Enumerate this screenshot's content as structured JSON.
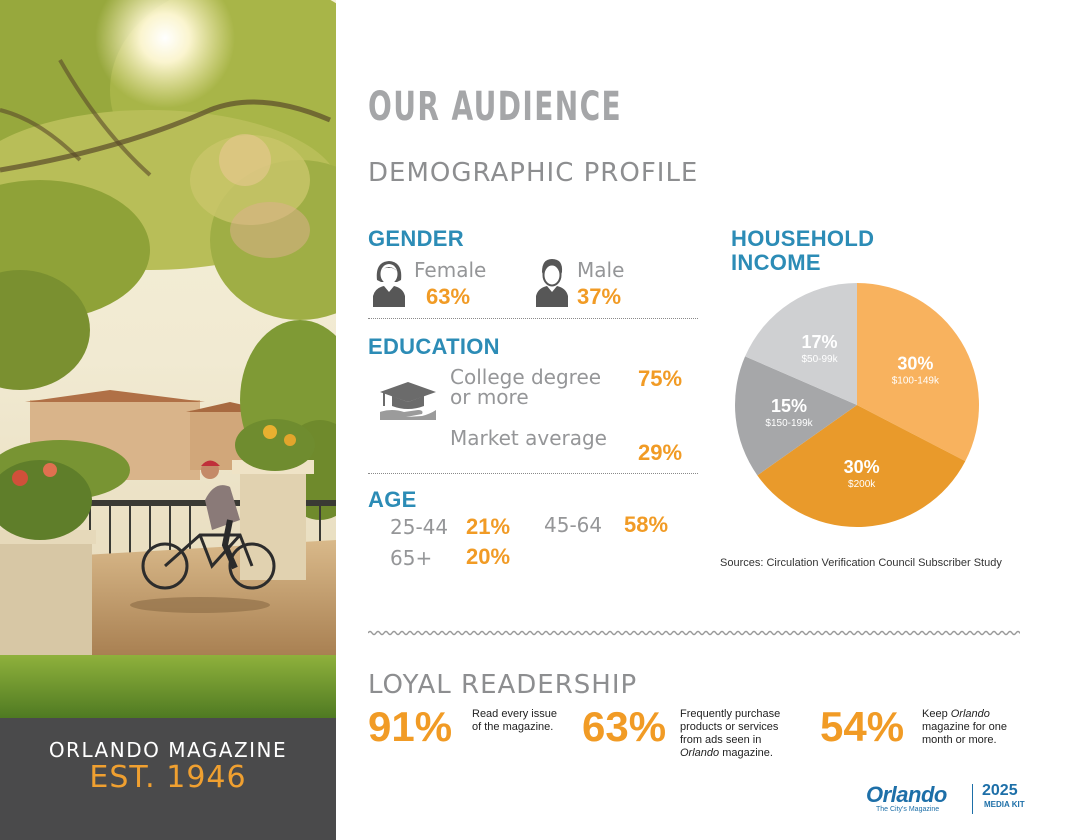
{
  "brand": {
    "name": "ORLANDO MAGAZINE",
    "established": "EST. 1946"
  },
  "page": {
    "title": "OUR AUDIENCE",
    "subtitle": "DEMOGRAPHIC PROFILE"
  },
  "gender": {
    "heading": "GENDER",
    "female": {
      "label": "Female",
      "value": "63%",
      "icon": "female-person-icon"
    },
    "male": {
      "label": "Male",
      "value": "37%",
      "icon": "male-person-icon"
    }
  },
  "education": {
    "heading": "EDUCATION",
    "icon": "graduation-cap-hand-icon",
    "college_label_line1": "College degree",
    "college_label_line2": "or more",
    "college_value": "75%",
    "market_label": "Market average",
    "market_value": "29%"
  },
  "age": {
    "heading": "AGE",
    "groups": [
      {
        "label": "25-44",
        "value": "21%"
      },
      {
        "label": "45-64",
        "value": "58%"
      },
      {
        "label": "65+",
        "value": "20%"
      }
    ]
  },
  "household_income": {
    "heading_line1": "HOUSEHOLD",
    "heading_line2": "INCOME"
  },
  "chart_data": {
    "type": "pie",
    "title": "HOUSEHOLD INCOME",
    "slices": [
      {
        "label": "$100-149k",
        "value": 30,
        "display": "30%",
        "color": "#f8b25e"
      },
      {
        "label": "$200k",
        "value": 30,
        "display": "30%",
        "color": "#e99a2b"
      },
      {
        "label": "$150-199k",
        "value": 15,
        "display": "15%",
        "color": "#a6a7a9"
      },
      {
        "label": "$50-99k",
        "value": 17,
        "display": "17%",
        "color": "#cfd0d2"
      }
    ]
  },
  "sources": "Sources: Circulation Verification Council Subscriber Study",
  "loyal": {
    "title": "LOYAL READERSHIP",
    "stats": [
      {
        "value": "91%",
        "line1": "Read every issue",
        "line2": "of the magazine."
      },
      {
        "value": "63%",
        "line1": "Frequently purchase",
        "line2": "products or services",
        "line3": "from ads seen in",
        "line4_italic": "Orlando",
        "line4_rest": " magazine."
      },
      {
        "value": "54%",
        "line1_pre": "Keep ",
        "line1_italic": "Orlando",
        "line2": "magazine for one",
        "line3": "month or more."
      }
    ]
  },
  "logo": {
    "word": "Orlando",
    "tagline": "The City's Magazine",
    "year": "2025",
    "kit": "MEDIA KIT"
  },
  "colors": {
    "accent_orange": "#f19b25",
    "heading_blue": "#2c8cb6",
    "brand_panel": "#4a4a4b"
  }
}
